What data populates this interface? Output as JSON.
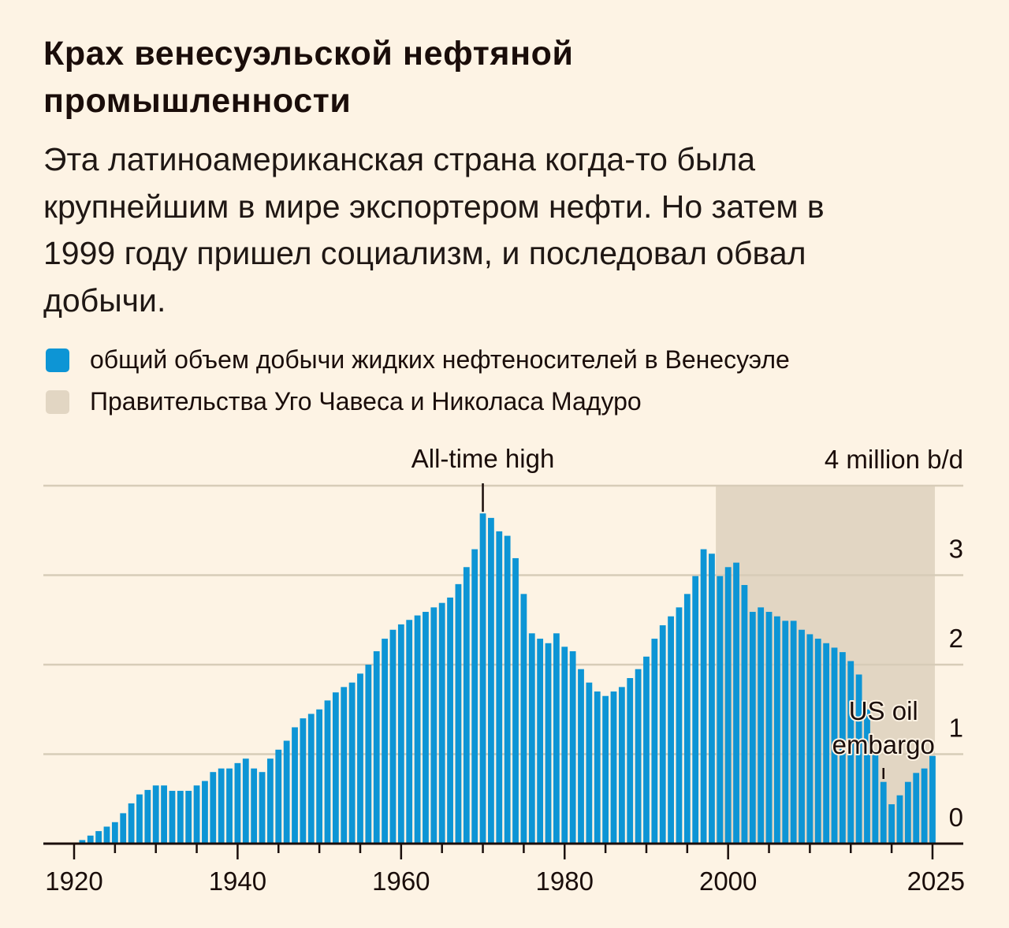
{
  "title_lines": [
    "Крах венесуэльской нефтяной",
    "промышленности"
  ],
  "subtitle_lines": [
    "Эта латиноамериканская страна когда-то была",
    "крупнейшим в мире экспортером нефти. Но затем в",
    "1999 году пришел социализм, и последовал обвал",
    "добычи."
  ],
  "legend": [
    {
      "label": "общий объем добычи жидких нефтеносителей в Венесуэле",
      "color": "#0d95d5"
    },
    {
      "label": "Правительства Уго Чавеса и Николаса Мадуро",
      "color": "#e2d6c3"
    }
  ],
  "chart_data": {
    "type": "bar",
    "title": "",
    "xlabel": "",
    "ylabel": "",
    "y_unit_label": "4 million b/d",
    "ylim": [
      0,
      4
    ],
    "y_ticks": [
      0,
      1,
      2,
      3,
      4
    ],
    "y_tick_labels": [
      "0",
      "1",
      "2",
      "3",
      "4 million b/d"
    ],
    "y_axis_side": "right",
    "grid": true,
    "x_ticks_minor_every": 5,
    "x_tick_labels": [
      "1920",
      "1940",
      "1960",
      "1980",
      "2000",
      "2025"
    ],
    "x_tick_label_years": [
      1920,
      1940,
      1960,
      1980,
      2000,
      2025
    ],
    "bar_color": "#0d95d5",
    "shaded_period": {
      "start": 1999,
      "end": 2025,
      "color": "#e2d6c3"
    },
    "annotations": [
      {
        "text": "All-time high",
        "year": 1970
      },
      {
        "text_lines": [
          "US oil",
          "embargo"
        ],
        "year": 2019
      }
    ],
    "years": [
      1921,
      1922,
      1923,
      1924,
      1925,
      1926,
      1927,
      1928,
      1929,
      1930,
      1931,
      1932,
      1933,
      1934,
      1935,
      1936,
      1937,
      1938,
      1939,
      1940,
      1941,
      1942,
      1943,
      1944,
      1945,
      1946,
      1947,
      1948,
      1949,
      1950,
      1951,
      1952,
      1953,
      1954,
      1955,
      1956,
      1957,
      1958,
      1959,
      1960,
      1961,
      1962,
      1963,
      1964,
      1965,
      1966,
      1967,
      1968,
      1969,
      1970,
      1971,
      1972,
      1973,
      1974,
      1975,
      1976,
      1977,
      1978,
      1979,
      1980,
      1981,
      1982,
      1983,
      1984,
      1985,
      1986,
      1987,
      1988,
      1989,
      1990,
      1991,
      1992,
      1993,
      1994,
      1995,
      1996,
      1997,
      1998,
      1999,
      2000,
      2001,
      2002,
      2003,
      2004,
      2005,
      2006,
      2007,
      2008,
      2009,
      2010,
      2011,
      2012,
      2013,
      2014,
      2015,
      2016,
      2017,
      2018,
      2019,
      2020,
      2021,
      2022,
      2023,
      2024,
      2025
    ],
    "values": [
      0.04,
      0.09,
      0.14,
      0.19,
      0.24,
      0.34,
      0.45,
      0.55,
      0.6,
      0.65,
      0.65,
      0.59,
      0.59,
      0.59,
      0.65,
      0.7,
      0.8,
      0.84,
      0.84,
      0.9,
      0.95,
      0.84,
      0.8,
      0.95,
      1.05,
      1.15,
      1.3,
      1.4,
      1.45,
      1.5,
      1.6,
      1.69,
      1.75,
      1.8,
      1.9,
      2.0,
      2.15,
      2.29,
      2.39,
      2.45,
      2.5,
      2.55,
      2.59,
      2.64,
      2.69,
      2.75,
      2.9,
      3.09,
      3.29,
      3.69,
      3.64,
      3.49,
      3.44,
      3.19,
      2.79,
      2.35,
      2.29,
      2.24,
      2.35,
      2.2,
      2.15,
      1.95,
      1.8,
      1.7,
      1.65,
      1.7,
      1.75,
      1.85,
      1.95,
      2.09,
      2.29,
      2.44,
      2.54,
      2.64,
      2.79,
      2.99,
      3.29,
      3.24,
      2.99,
      3.09,
      3.14,
      2.89,
      2.59,
      2.64,
      2.59,
      2.54,
      2.49,
      2.49,
      2.39,
      2.34,
      2.29,
      2.24,
      2.19,
      2.14,
      2.04,
      1.89,
      1.5,
      1.0,
      0.69,
      0.44,
      0.54,
      0.69,
      0.79,
      0.84,
      0.98
    ]
  }
}
